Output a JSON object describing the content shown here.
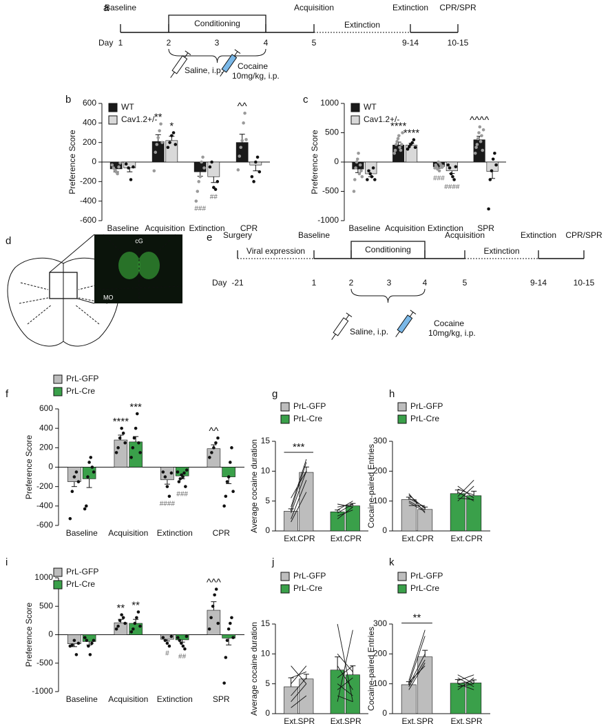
{
  "timelines": [
    {
      "panel": "a",
      "day_label": "Day",
      "days": [
        "1",
        "2",
        "3",
        "4",
        "5",
        "9-14",
        "10-15"
      ],
      "above": [
        "Baseline",
        null,
        null,
        null,
        "Acquisition",
        "Extinction",
        "CPR/SPR"
      ],
      "conditioning": "Conditioning",
      "between": "Extinction",
      "saline": "Saline, i.p.",
      "cocaine": [
        "Cocaine",
        "10mg/kg, i.p."
      ]
    },
    {
      "panel": "e",
      "day_label": "Day",
      "days": [
        "-21",
        "1",
        "2",
        "3",
        "4",
        "5",
        "9-14",
        "10-15"
      ],
      "above": [
        "Surgery",
        "Baseline",
        null,
        null,
        null,
        "Acquisition",
        "Extinction",
        "CPR/SPR"
      ],
      "conditioning": "Conditioning",
      "between": "Extinction",
      "viral": "Viral expression",
      "saline": "Saline, i.p.",
      "cocaine": [
        "Cocaine",
        "10mg/kg, i.p."
      ]
    }
  ],
  "diagram": {
    "panel": "d",
    "labels": [
      "cG",
      "MO"
    ]
  },
  "chart_data": [
    {
      "type": "bar",
      "panel": "b",
      "ylabel": "Preference Score",
      "categories": [
        "Baseline",
        "Acquisition",
        "Extinction",
        "CPR"
      ],
      "ylim": [
        -600,
        600
      ],
      "yticks": [
        -600,
        -400,
        -200,
        0,
        200,
        400,
        600
      ],
      "series": [
        {
          "name": "WT",
          "color": "#1a1a1a",
          "point_color": "#9a9a9a",
          "values": [
            -70,
            210,
            -100,
            200
          ],
          "errors": [
            30,
            70,
            45,
            85
          ],
          "points": [
            [
              -30,
              -60,
              -80,
              -100,
              -120,
              -50,
              -10
            ],
            [
              -90,
              100,
              180,
              250,
              320,
              390,
              200
            ],
            [
              -400,
              -300,
              -200,
              -150,
              0,
              50,
              -60
            ],
            [
              -80,
              60,
              150,
              220,
              400,
              500,
              230
            ]
          ],
          "above": [
            null,
            "**",
            null,
            "^^"
          ],
          "below": [
            null,
            null,
            "###",
            null
          ]
        },
        {
          "name": "Cav1.2+/-",
          "color": "#d9d9d9",
          "point_color": "#111111",
          "values": [
            -60,
            220,
            -150,
            -30
          ],
          "errors": [
            40,
            45,
            60,
            60
          ],
          "points": [
            [
              -20,
              -60,
              -180,
              -50
            ],
            [
              150,
              200,
              270,
              300,
              180
            ],
            [
              -50,
              0,
              -260,
              -280,
              -200
            ],
            [
              -150,
              -200,
              0,
              50,
              -100
            ]
          ],
          "above": [
            null,
            "*",
            null,
            null
          ],
          "below": [
            null,
            null,
            "##",
            null
          ]
        }
      ]
    },
    {
      "type": "bar",
      "panel": "c",
      "ylabel": "Preference Score",
      "categories": [
        "Baseline",
        "Acquisition",
        "Extinction",
        "SPR"
      ],
      "ylim": [
        -1000,
        1000
      ],
      "yticks": [
        -1000,
        -500,
        0,
        500,
        1000
      ],
      "series": [
        {
          "name": "WT",
          "color": "#1a1a1a",
          "point_color": "#9a9a9a",
          "values": [
            -120,
            290,
            -80,
            380
          ],
          "errors": [
            60,
            50,
            25,
            60
          ],
          "points": [
            [
              -500,
              -300,
              -100,
              0,
              50,
              150,
              -200,
              -50,
              -150,
              -250
            ],
            [
              150,
              200,
              300,
              350,
              400,
              450,
              250,
              200,
              300,
              500
            ],
            [
              -100,
              -50,
              -80,
              -120,
              0,
              -150,
              -30,
              -60,
              -90,
              -70
            ],
            [
              150,
              250,
              300,
              400,
              500,
              600,
              350,
              450,
              200,
              550
            ]
          ],
          "above": [
            null,
            "****",
            null,
            "^^^^"
          ],
          "below": [
            null,
            null,
            "###",
            null
          ]
        },
        {
          "name": "Cav1.2+/-",
          "color": "#d9d9d9",
          "point_color": "#111111",
          "values": [
            -200,
            290,
            -150,
            -160
          ],
          "errors": [
            50,
            30,
            45,
            120
          ],
          "points": [
            [
              -300,
              -150,
              -200,
              -250,
              -100,
              -300
            ],
            [
              220,
              260,
              300,
              330,
              380,
              250
            ],
            [
              -50,
              -100,
              -200,
              -250,
              -300,
              -80
            ],
            [
              -800,
              -300,
              -150,
              50,
              150,
              -50
            ]
          ],
          "above": [
            null,
            "****",
            null,
            null
          ],
          "below": [
            null,
            null,
            "####",
            null
          ]
        }
      ]
    },
    {
      "type": "bar",
      "panel": "f",
      "ylabel": "Preference Score",
      "categories": [
        "Baseline",
        "Acquisition",
        "Extinction",
        "CPR"
      ],
      "ylim": [
        -600,
        600
      ],
      "yticks": [
        -600,
        -400,
        -200,
        0,
        200,
        400,
        600
      ],
      "series": [
        {
          "name": "PrL-GFP",
          "color": "#bdbdbd",
          "point_color": "#111111",
          "values": [
            -150,
            280,
            -130,
            190
          ],
          "errors": [
            50,
            50,
            45,
            40
          ],
          "points": [
            [
              -530,
              -250,
              -100,
              -50,
              -150
            ],
            [
              150,
              200,
              300,
              400,
              350,
              250
            ],
            [
              -50,
              -100,
              -200,
              -300,
              -60
            ],
            [
              100,
              150,
              200,
              250,
              300
            ]
          ],
          "above": [
            null,
            "****",
            null,
            "^^"
          ],
          "below": [
            null,
            null,
            "####",
            null
          ]
        },
        {
          "name": "PrL-Cre",
          "color": "#3aa04a",
          "point_color": "#111111",
          "values": [
            -120,
            260,
            -90,
            -100
          ],
          "errors": [
            90,
            55,
            30,
            70
          ],
          "points": [
            [
              -430,
              -400,
              -100,
              50,
              100,
              0,
              -50
            ],
            [
              100,
              200,
              300,
              400,
              550,
              250,
              150
            ],
            [
              -50,
              -150,
              -120,
              -80,
              -100,
              -60,
              -200,
              -30
            ],
            [
              -400,
              -300,
              -150,
              -100,
              50,
              200,
              -250
            ]
          ],
          "above": [
            null,
            "***",
            null,
            null
          ],
          "below": [
            null,
            null,
            "###",
            null
          ]
        }
      ]
    },
    {
      "type": "paired",
      "panel": "g",
      "ylabel": "Average cocaine duration",
      "categories": [
        "Ext.",
        "CPR"
      ],
      "ylim": [
        0,
        15
      ],
      "yticks": [
        0,
        5,
        10,
        15
      ],
      "series": [
        {
          "name": "PrL-GFP",
          "color": "#bdbdbd",
          "values": [
            3.3,
            9.8
          ],
          "errors": [
            0.4,
            0.9
          ],
          "pairs": [
            [
              1.5,
              6.5
            ],
            [
              2,
              8.5
            ],
            [
              3,
              10
            ],
            [
              3.5,
              11.5
            ],
            [
              4,
              12
            ],
            [
              5.5,
              10
            ]
          ],
          "sig": "***"
        },
        {
          "name": "PrL-Cre",
          "color": "#3aa04a",
          "values": [
            3.2,
            4.2
          ],
          "errors": [
            0.3,
            0.4
          ],
          "pairs": [
            [
              2,
              4
            ],
            [
              2.5,
              3.5
            ],
            [
              3,
              4.5
            ],
            [
              3.5,
              5
            ],
            [
              4,
              4.5
            ],
            [
              4.5,
              4
            ]
          ]
        }
      ]
    },
    {
      "type": "paired",
      "panel": "h",
      "ylabel": "Cocaine-paired Entries",
      "categories": [
        "Ext.",
        "CPR"
      ],
      "ylim": [
        0,
        300
      ],
      "yticks": [
        0,
        100,
        200,
        300
      ],
      "series": [
        {
          "name": "PrL-GFP",
          "color": "#bdbdbd",
          "values": [
            105,
            72
          ],
          "errors": [
            8,
            8
          ],
          "pairs": [
            [
              125,
              60
            ],
            [
              110,
              80
            ],
            [
              100,
              70
            ],
            [
              95,
              65
            ],
            [
              120,
              75
            ],
            [
              85,
              85
            ]
          ]
        },
        {
          "name": "PrL-Cre",
          "color": "#3aa04a",
          "values": [
            125,
            118
          ],
          "errors": [
            12,
            15
          ],
          "pairs": [
            [
              100,
              150
            ],
            [
              130,
              100
            ],
            [
              140,
              120
            ],
            [
              115,
              170
            ],
            [
              150,
              110
            ],
            [
              110,
              105
            ]
          ]
        }
      ]
    },
    {
      "type": "bar",
      "panel": "i",
      "ylabel": "Preference Score",
      "categories": [
        "Baseline",
        "Acquisition",
        "Extinction",
        "SPR"
      ],
      "ylim": [
        -1000,
        1000
      ],
      "yticks": [
        -1000,
        -500,
        0,
        500,
        1000
      ],
      "series": [
        {
          "name": "PrL-GFP",
          "color": "#bdbdbd",
          "point_color": "#111111",
          "values": [
            -160,
            210,
            -80,
            430
          ],
          "errors": [
            50,
            60,
            30,
            150
          ],
          "points": [
            [
              -200,
              -180,
              -100,
              -350,
              -150
            ],
            [
              100,
              150,
              250,
              350,
              300,
              200
            ],
            [
              -50,
              -100,
              -150,
              -200,
              -30
            ],
            [
              100,
              300,
              500,
              700,
              800,
              200
            ]
          ],
          "above": [
            null,
            "**",
            null,
            "^^^"
          ],
          "below": [
            null,
            null,
            "#",
            null
          ]
        },
        {
          "name": "PrL-Cre",
          "color": "#3aa04a",
          "point_color": "#111111",
          "values": [
            -120,
            200,
            -90,
            -60
          ],
          "errors": [
            60,
            70,
            40,
            120
          ],
          "points": [
            [
              -50,
              -100,
              -200,
              -350,
              -150,
              -100
            ],
            [
              50,
              100,
              200,
              300,
              400,
              150
            ],
            [
              -50,
              -100,
              -150,
              -200,
              -250,
              -30
            ],
            [
              -850,
              -400,
              -100,
              100,
              200,
              300,
              -50
            ]
          ],
          "above": [
            null,
            "**",
            null,
            null
          ],
          "below": [
            null,
            null,
            "##",
            null
          ]
        }
      ]
    },
    {
      "type": "paired",
      "panel": "j",
      "ylabel": "Average cocaine duration",
      "categories": [
        "Ext.",
        "SPR"
      ],
      "ylim": [
        0,
        15
      ],
      "yticks": [
        0,
        5,
        10,
        15
      ],
      "series": [
        {
          "name": "PrL-GFP",
          "color": "#bdbdbd",
          "values": [
            4.5,
            5.8
          ],
          "errors": [
            1.5,
            0.8
          ],
          "pairs": [
            [
              1,
              3
            ],
            [
              2,
              5
            ],
            [
              3,
              6
            ],
            [
              5,
              8
            ],
            [
              6,
              7
            ],
            [
              8,
              5
            ]
          ]
        },
        {
          "name": "PrL-Cre",
          "color": "#3aa04a",
          "values": [
            7.3,
            6.5
          ],
          "errors": [
            2.2,
            1.5
          ],
          "pairs": [
            [
              2,
              14
            ],
            [
              3,
              2
            ],
            [
              4,
              6
            ],
            [
              5,
              3
            ],
            [
              6,
              8
            ],
            [
              8,
              4
            ],
            [
              15,
              2
            ],
            [
              10,
              7
            ]
          ]
        }
      ]
    },
    {
      "type": "paired",
      "panel": "k",
      "ylabel": "Cocaine-paired Entries",
      "categories": [
        "Ext.",
        "SPR"
      ],
      "ylim": [
        0,
        300
      ],
      "yticks": [
        0,
        100,
        200,
        300
      ],
      "series": [
        {
          "name": "PrL-GFP",
          "color": "#bdbdbd",
          "values": [
            97,
            190
          ],
          "errors": [
            10,
            22
          ],
          "pairs": [
            [
              80,
              170
            ],
            [
              90,
              180
            ],
            [
              95,
              200
            ],
            [
              100,
              260
            ],
            [
              110,
              280
            ],
            [
              105,
              160
            ]
          ],
          "sig": "**"
        },
        {
          "name": "PrL-Cre",
          "color": "#3aa04a",
          "values": [
            102,
            103
          ],
          "errors": [
            12,
            10
          ],
          "pairs": [
            [
              80,
              120
            ],
            [
              100,
              110
            ],
            [
              120,
              90
            ],
            [
              130,
              100
            ],
            [
              110,
              130
            ],
            [
              90,
              100
            ],
            [
              100,
              80
            ]
          ]
        }
      ]
    }
  ]
}
